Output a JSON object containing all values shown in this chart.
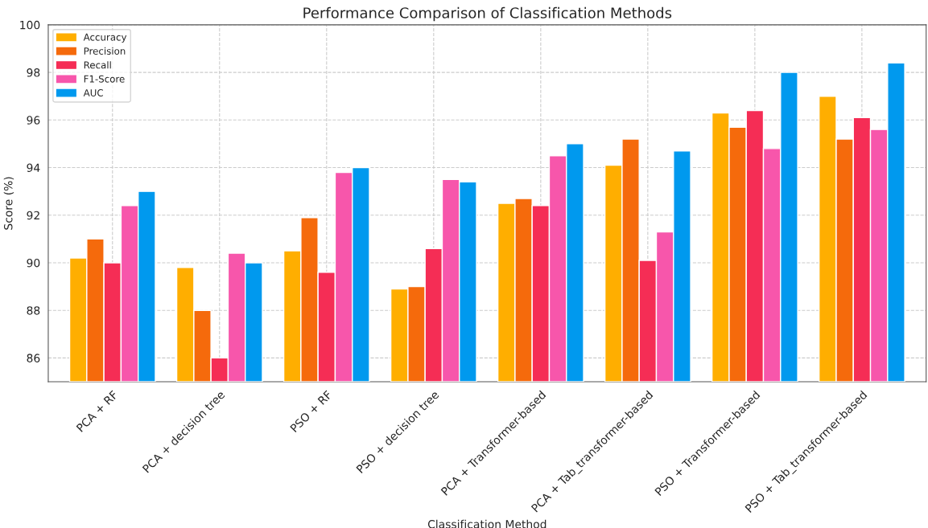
{
  "chart_data": {
    "type": "bar",
    "title": "Performance Comparison of Classification Methods",
    "xlabel": "Classification Method",
    "ylabel": "Score (%)",
    "categories": [
      "PCA + RF",
      "PCA + decision tree",
      "PSO + RF",
      "PSO + decision tree",
      "PCA + Transformer-based",
      "PCA + Tab_transformer-based",
      "PSO + Transformer-based",
      "PSO + Tab_transformer-based"
    ],
    "series": [
      {
        "name": "Accuracy",
        "color": "#ffae00",
        "values": [
          90.2,
          89.8,
          90.5,
          88.9,
          92.5,
          94.1,
          96.3,
          97.0
        ]
      },
      {
        "name": "Precision",
        "color": "#f56a0c",
        "values": [
          91.0,
          88.0,
          91.9,
          89.0,
          92.7,
          95.2,
          95.7,
          95.2
        ]
      },
      {
        "name": "Recall",
        "color": "#f52d55",
        "values": [
          90.0,
          86.0,
          89.6,
          90.6,
          92.4,
          90.1,
          96.4,
          96.1
        ]
      },
      {
        "name": "F1-Score",
        "color": "#f756ab",
        "values": [
          92.4,
          90.4,
          93.8,
          93.5,
          94.5,
          91.3,
          94.8,
          95.6
        ]
      },
      {
        "name": "AUC",
        "color": "#0099ee",
        "values": [
          93.0,
          90.0,
          94.0,
          93.4,
          95.0,
          94.7,
          98.0,
          98.4
        ]
      }
    ],
    "ylim": [
      85,
      100
    ],
    "yticks": [
      86,
      88,
      90,
      92,
      94,
      96,
      98,
      100
    ],
    "grid": true,
    "legend": "top left"
  }
}
